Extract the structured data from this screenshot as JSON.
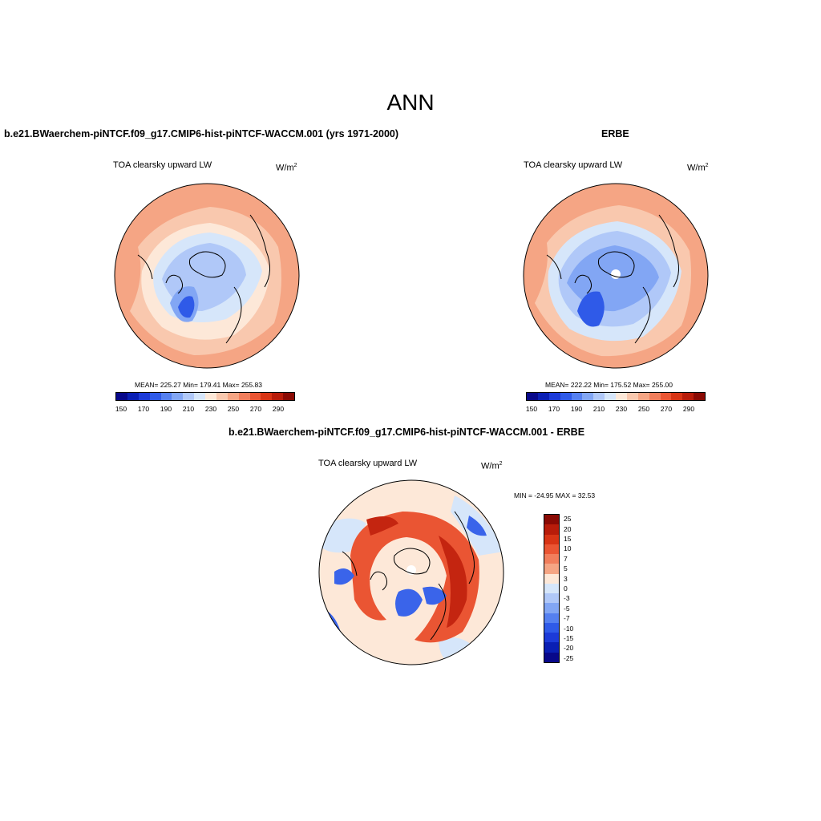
{
  "title": "ANN",
  "panels": {
    "model": {
      "title": "b.e21.BWaerchem-piNTCF.f09_g17.CMIP6-hist-piNTCF-WACCM.001 (yrs 1971-2000)",
      "variable": "TOA clearsky upward LW",
      "units_base": "W/m",
      "units_exp": "2",
      "stats": "MEAN= 225.27  Min= 179.41  Max= 255.83"
    },
    "obs": {
      "title": "ERBE",
      "variable": "TOA clearsky upward LW",
      "units_base": "W/m",
      "units_exp": "2",
      "stats": "MEAN= 222.22  Min= 175.52  Max= 255.00"
    },
    "diff": {
      "title": "b.e21.BWaerchem-piNTCF.f09_g17.CMIP6-hist-piNTCF-WACCM.001 - ERBE",
      "variable": "TOA clearsky upward LW",
      "units_base": "W/m",
      "units_exp": "2",
      "stats": "MIN = -24.95 MAX =  32.53"
    }
  },
  "colorbar_main": {
    "colors": [
      "#08088a",
      "#0a1fb4",
      "#1c3ad8",
      "#2f5ae8",
      "#5580f0",
      "#82a6f4",
      "#b0c8f8",
      "#d6e6fa",
      "#fde8d8",
      "#f9c8ae",
      "#f5a584",
      "#f17e5c",
      "#ea5533",
      "#d83415",
      "#b81c0a",
      "#8a0a04"
    ],
    "labels": [
      "150",
      "170",
      "190",
      "210",
      "230",
      "250",
      "270",
      "290"
    ]
  },
  "colorbar_diff": {
    "colors": [
      "#8a0a04",
      "#b81c0a",
      "#d83415",
      "#ea5533",
      "#f17e5c",
      "#f5a584",
      "#fde8d8",
      "#d6e6fa",
      "#b0c8f8",
      "#82a6f4",
      "#5580f0",
      "#2f5ae8",
      "#1c3ad8",
      "#0a1fb4",
      "#08088a"
    ],
    "labels": [
      "25",
      "20",
      "15",
      "10",
      "7",
      "5",
      "3",
      "0",
      "-3",
      "-5",
      "-7",
      "-10",
      "-15",
      "-20",
      "-25"
    ]
  },
  "map_colors": {
    "ocean_warm": "#f5a584",
    "mid_warm": "#f9c8ae",
    "light_warm": "#fde8d8",
    "light_cool": "#d6e6fa",
    "cool": "#b0c8f8",
    "cold": "#82a6f4",
    "coldest": "#2f5ae8",
    "diff_pos": "#ea5533",
    "diff_pos_strong": "#c42510",
    "diff_neg": "#3a64ea",
    "coast": "#000000"
  }
}
